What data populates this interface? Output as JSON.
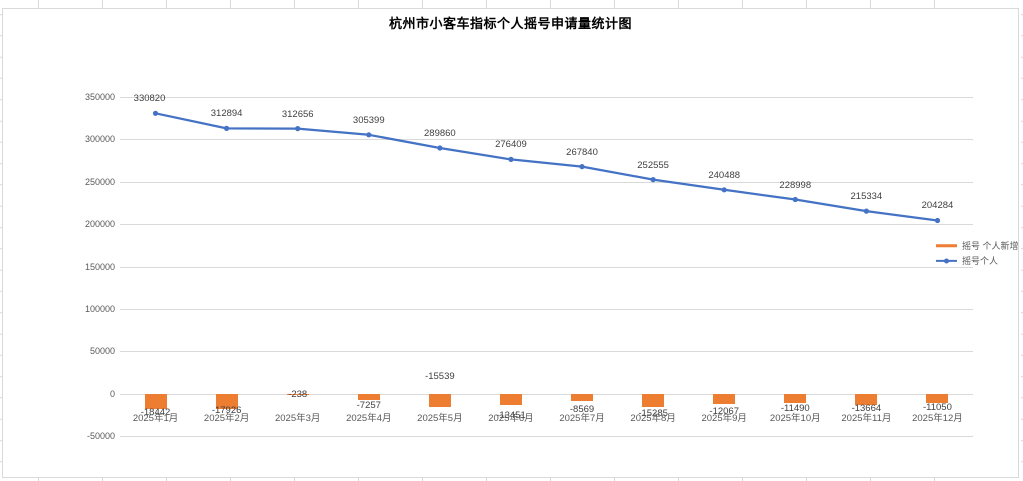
{
  "chart": {
    "legend": {
      "items": [
        {
          "label": "摇号 个人新增",
          "series_type": "bar",
          "color": "#ED7D31"
        },
        {
          "label": "摇号个人",
          "series_type": "line",
          "color": "#4472C4"
        }
      ]
    }
  },
  "chart_data": {
    "type": "combo",
    "title": "杭州市小客车指标个人摇号申请量统计图",
    "categories": [
      "2025年1月",
      "2025年2月",
      "2025年3月",
      "2025年4月",
      "2025年5月",
      "2025年6月",
      "2025年7月",
      "2025年8月",
      "2025年9月",
      "2025年10月",
      "2025年11月",
      "2025年12月"
    ],
    "series": [
      {
        "name": "摇号 个人新增",
        "type": "bar",
        "color": "#ED7D31",
        "values": [
          -18442,
          -17926,
          -238,
          -7257,
          -15539,
          -13451,
          -8569,
          -15285,
          -12067,
          -11490,
          -13664,
          -11050
        ]
      },
      {
        "name": "摇号个人",
        "type": "line",
        "color": "#4472C4",
        "values": [
          330820,
          312894,
          312656,
          305399,
          289860,
          276409,
          267840,
          252555,
          240488,
          228998,
          215334,
          204284
        ]
      }
    ],
    "xlabel": "",
    "ylabel": "",
    "y_axis": {
      "min": -50000,
      "max": 350000,
      "step": 50000,
      "tick_labels": [
        "350000",
        "300000",
        "250000",
        "200000",
        "150000",
        "100000",
        "50000",
        "0",
        "-50000"
      ]
    },
    "grid": true,
    "data_labels": true,
    "legend_position": "right"
  }
}
